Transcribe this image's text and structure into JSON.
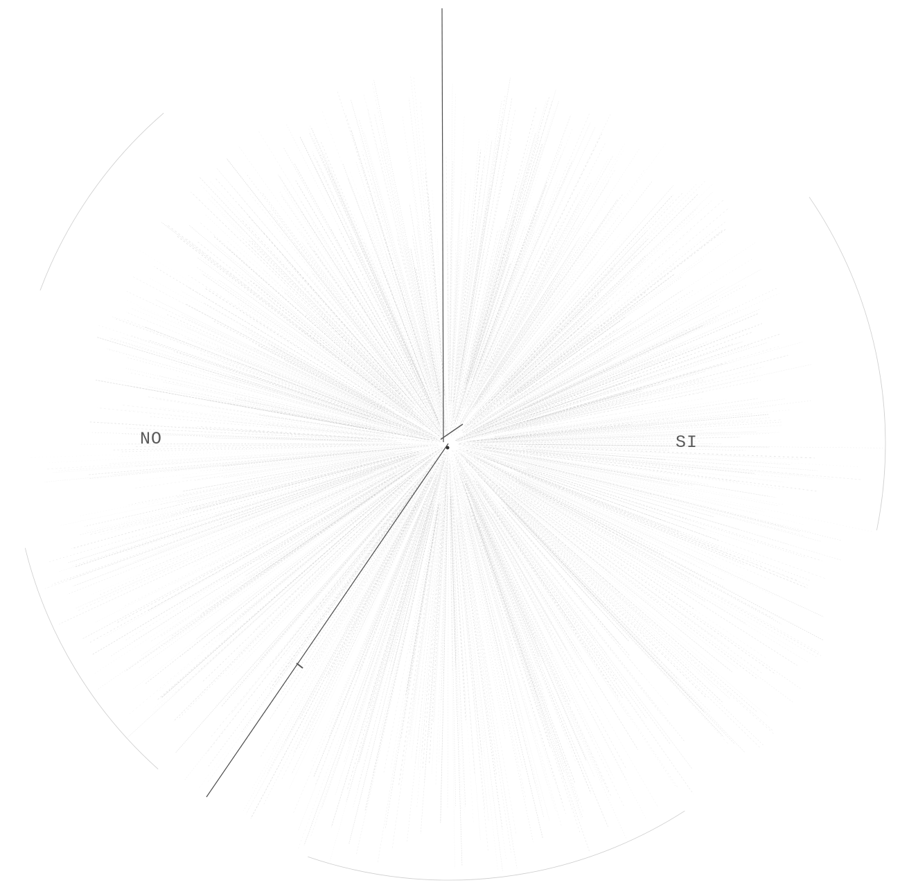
{
  "labels": {
    "left": "NO",
    "right": "SI"
  },
  "colors": {
    "background": "#ffffff",
    "stroke": "#6e6e6e",
    "axis": "#4a4a4a",
    "text": "#5a5a5a"
  }
}
